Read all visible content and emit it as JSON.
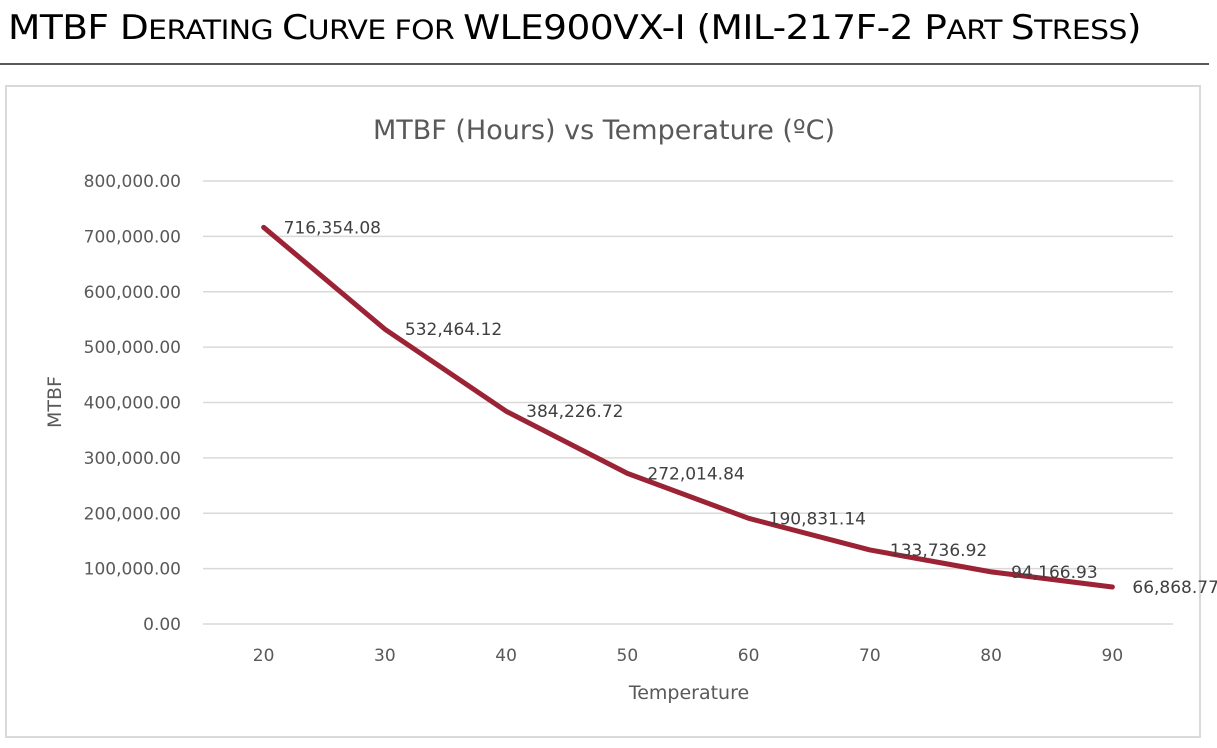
{
  "document": {
    "title_parts": [
      {
        "text": "MTBF ",
        "small_caps": false
      },
      {
        "text": "D",
        "small_caps": false
      },
      {
        "text": "ERATING ",
        "small_caps": true
      },
      {
        "text": "C",
        "small_caps": false
      },
      {
        "text": "URVE FOR ",
        "small_caps": true
      },
      {
        "text": "WLE900VX-I (MIL-217F-2 ",
        "small_caps": false
      },
      {
        "text": "P",
        "small_caps": false
      },
      {
        "text": "ART ",
        "small_caps": true
      },
      {
        "text": "S",
        "small_caps": false
      },
      {
        "text": "TRESS",
        "small_caps": true
      },
      {
        "text": ")",
        "small_caps": false
      }
    ]
  },
  "chart_data": {
    "type": "line",
    "title": "MTBF (Hours) vs Temperature (ºC)",
    "xlabel": "Temperature",
    "ylabel": "MTBF",
    "categories": [
      "20",
      "30",
      "40",
      "50",
      "60",
      "70",
      "80",
      "90"
    ],
    "series": [
      {
        "name": "MTBF",
        "color": "#9B2335",
        "values": [
          716354.08,
          532464.12,
          384226.72,
          272014.84,
          190831.14,
          133736.92,
          94166.93,
          66868.77
        ],
        "data_labels": [
          "716,354.08",
          "532,464.12",
          "384,226.72",
          "272,014.84",
          "190,831.14",
          "133,736.92",
          "94,166.93",
          "66,868.77"
        ]
      }
    ],
    "ylim": [
      0,
      800000
    ],
    "yticks": [
      0,
      100000,
      200000,
      300000,
      400000,
      500000,
      600000,
      700000,
      800000
    ],
    "ytick_labels": [
      "0.00",
      "100,000.00",
      "200,000.00",
      "300,000.00",
      "400,000.00",
      "500,000.00",
      "600,000.00",
      "700,000.00",
      "800,000.00"
    ],
    "grid": true,
    "legend": "none"
  }
}
